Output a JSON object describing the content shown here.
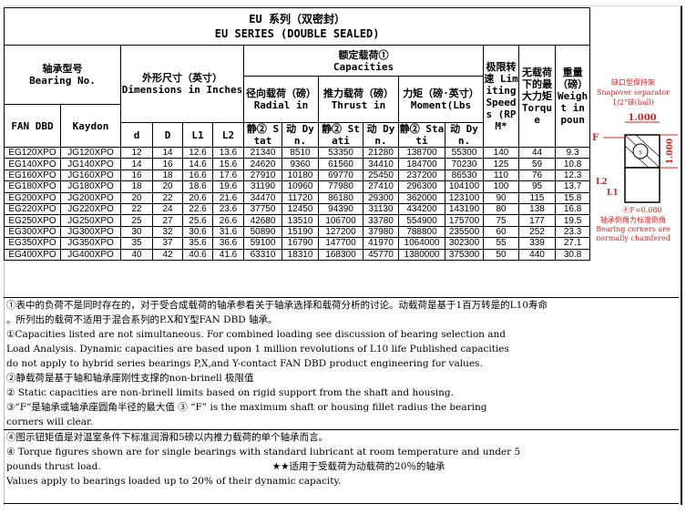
{
  "title": {
    "cn": "EU 系列（双密封）",
    "en": "EU SERIES (DOUBLE SEALED)"
  },
  "headers": {
    "bearing_no_cn": "轴承型号",
    "bearing_no_en": "Bearing No.",
    "fan_dbd": "FAN DBD",
    "kaydon": "Kaydon",
    "dimensions_cn": "外形尺寸（英寸）",
    "dimensions_en": "Dimensions in Inches",
    "d": "d",
    "D": "D",
    "L1": "L1",
    "L2": "L2",
    "capacities_cn": "额定载荷①",
    "capacities_en": "Capacities",
    "radial_cn": "径向载荷（磅）",
    "radial_en": "Radial in",
    "thrust_cn": "推力载荷（磅）",
    "thrust_en": "Thrust in",
    "moment_cn": "力矩（磅·英寸）",
    "moment_en": "Moment(Lbs",
    "static_radial": "静② Stat",
    "dyn": "动 Dyn.",
    "static": "静② Stati",
    "speed": "极限转速 Limiting Speeds (RPM*",
    "torque": "无载荷下的最大力矩 Torque",
    "weight": "重量（磅）Weight in poun"
  },
  "rows": [
    [
      "EG120XPO",
      "JG120XPO",
      "12",
      "14",
      "12.6",
      "13.6",
      "21340",
      "8510",
      "53350",
      "21280",
      "138700",
      "55300",
      "140",
      "44",
      "9.3"
    ],
    [
      "EG140XPO",
      "JG140XPO",
      "14",
      "16",
      "14.6",
      "15.6",
      "24620",
      "9360",
      "61560",
      "34410",
      "184700",
      "70230",
      "125",
      "59",
      "10.8"
    ],
    [
      "EG160XPO",
      "JG160XPO",
      "16",
      "18",
      "16.6",
      "17.6",
      "27910",
      "10180",
      "69770",
      "25450",
      "237200",
      "86530",
      "110",
      "76",
      "12.3"
    ],
    [
      "EG180XPO",
      "JG180XPO",
      "18",
      "20",
      "18.6",
      "19.6",
      "31190",
      "10960",
      "77980",
      "27410",
      "296300",
      "104100",
      "100",
      "95",
      "13.7"
    ],
    [
      "EG200XPO",
      "JG200XPO",
      "20",
      "22",
      "20.6",
      "21.6",
      "34470",
      "11720",
      "86180",
      "29300",
      "362000",
      "123100",
      "90",
      "115",
      "15.8"
    ],
    [
      "EG220XPO",
      "JG220XPO",
      "22",
      "24",
      "22.6",
      "23.6",
      "37750",
      "12450",
      "94390",
      "31130",
      "434200",
      "143190",
      "80",
      "138",
      "16.8"
    ],
    [
      "EG250XPO",
      "JG250XPO",
      "25",
      "27",
      "25.6",
      "26.6",
      "42680",
      "13510",
      "106700",
      "33780",
      "554900",
      "175700",
      "75",
      "177",
      "19.5"
    ],
    [
      "EG300XPO",
      "JG300XPO",
      "30",
      "32",
      "30.6",
      "31.6",
      "50890",
      "15190",
      "127200",
      "37980",
      "788800",
      "235500",
      "60",
      "252",
      "23.3"
    ],
    [
      "EG350XPO",
      "JG350XPO",
      "35",
      "37",
      "35.6",
      "36.6",
      "59100",
      "16790",
      "147700",
      "41970",
      "1064000",
      "302300",
      "55",
      "339",
      "27.1"
    ],
    [
      "EG400XPO",
      "JG400XPO",
      "40",
      "42",
      "40.6",
      "41.6",
      "63310",
      "18310",
      "168300",
      "45770",
      "1380000",
      "375300",
      "50",
      "440",
      "30.8"
    ]
  ],
  "diagram": {
    "separator_cn": "缺口型保持架",
    "separator_en": "Snapover separator",
    "ball": "1/2\"球(ball)",
    "width": "1.000",
    "height": "1.000",
    "F": "F",
    "L2": "L2",
    "L1": "L1",
    "fillet": "ⒻF=0.080",
    "corners_cn": "轴承倒角为标准倒角",
    "corners_en1": "Bearing corners are",
    "corners_en2": "normally chamfered",
    "color": "#e02020"
  },
  "notes": [
    "①表中的负荷不是同时存在的，对于受合成载荷的轴承参看关于轴承选择和载荷分析的讨论。动载荷是基于1百万转是的L10寿命",
    "。所列出的载荷不适用于混合系列的P.X和Y型FAN DBD 轴承。",
    "①Capacities listed are not simultaneous. For combined loading see discussion of bearing selection and",
    "Load Analysis. Dynamic capacities are based upon 1 million revolutions of L10 life Published capacities",
    "do not apply to hybrid series bearings P,X,and Y-contact FAN DBD product engineering for values.",
    "②静载荷是基于轴和轴承座刚性支撑的non-brinell 极限值",
    "② Static capacities are non-brinell limits based on rigid support from the shaft and housing.",
    "③“F”是轴承或轴承座圆角半径的最大值  ③ “F” is the maximum shaft or housing fillet radius the bearing",
    "corners will clear."
  ],
  "notes2": [
    "④图示钮矩值是对温室条件下标准润滑和5磅以内推力载荷的单个轴承而言。",
    "④ Torque figures shown are for single bearings with standard lubricant at room temperature and under 5",
    "pounds thrust load.",
    "★★适用于受载荷为动载荷的20％的轴承",
    "Values apply to bearings loaded up to 20% of their dynamic capacity."
  ]
}
